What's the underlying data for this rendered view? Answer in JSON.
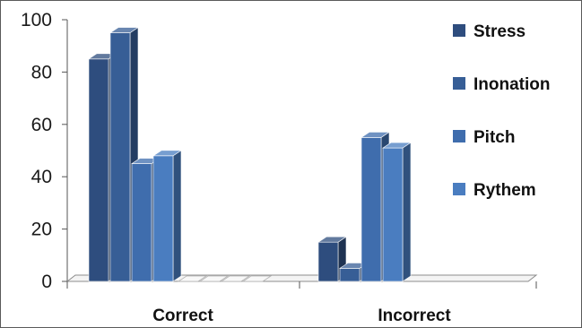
{
  "chart_data": {
    "type": "bar",
    "categories": [
      "Correct",
      "Incorrect"
    ],
    "series": [
      {
        "name": "Stress",
        "values": [
          85,
          15
        ]
      },
      {
        "name": "Inonation",
        "values": [
          95,
          5
        ]
      },
      {
        "name": "Pitch",
        "values": [
          45,
          55
        ]
      },
      {
        "name": "Rythem",
        "values": [
          48,
          51
        ]
      }
    ],
    "title": "",
    "xlabel": "",
    "ylabel": "",
    "ylim": [
      0,
      100
    ],
    "yticks": [
      "0",
      "20",
      "40",
      "60",
      "80",
      "100"
    ],
    "legend_position": "right",
    "grid": false,
    "colors": [
      "#2e4d7e",
      "#375e96",
      "#3f6dad",
      "#4a7dc0"
    ],
    "style": "3d-clustered-column"
  }
}
